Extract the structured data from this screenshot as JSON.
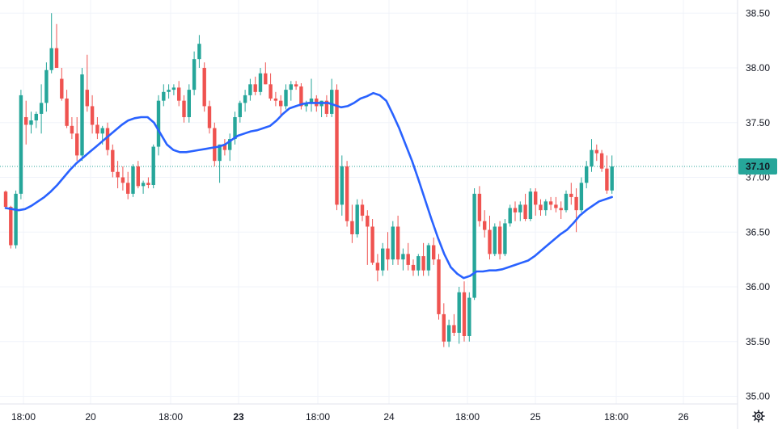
{
  "chart_data": {
    "type": "candlestick",
    "y_axis": {
      "ticks": [
        "38.50",
        "38.00",
        "37.50",
        "37.00",
        "36.50",
        "36.00",
        "35.50",
        "35.00"
      ],
      "range": [
        34.93,
        38.62
      ]
    },
    "x_axis": {
      "labels": [
        {
          "text": "18:00",
          "bold": false
        },
        {
          "text": "20",
          "bold": false
        },
        {
          "text": "18:00",
          "bold": false
        },
        {
          "text": "23",
          "bold": true
        },
        {
          "text": "18:00",
          "bold": false
        },
        {
          "text": "24",
          "bold": false
        },
        {
          "text": "18:00",
          "bold": false
        },
        {
          "text": "25",
          "bold": false
        },
        {
          "text": "18:00",
          "bold": false
        },
        {
          "text": "26",
          "bold": false
        }
      ]
    },
    "last_price": {
      "value": 37.1,
      "label": "37.10"
    },
    "candles": [
      [
        36.87,
        36.88,
        36.71,
        36.73
      ],
      [
        36.73,
        36.74,
        36.35,
        36.38
      ],
      [
        36.38,
        36.88,
        36.35,
        36.85
      ],
      [
        36.85,
        37.8,
        36.8,
        37.75
      ],
      [
        37.55,
        37.7,
        37.3,
        37.48
      ],
      [
        37.48,
        37.6,
        37.4,
        37.52
      ],
      [
        37.52,
        37.6,
        37.45,
        37.58
      ],
      [
        37.58,
        37.85,
        37.4,
        37.68
      ],
      [
        37.68,
        38.05,
        37.6,
        37.98
      ],
      [
        37.98,
        38.5,
        37.95,
        38.18
      ],
      [
        38.18,
        38.4,
        38.0,
        38.0
      ],
      [
        37.9,
        38.0,
        37.7,
        37.72
      ],
      [
        37.72,
        37.8,
        37.45,
        37.47
      ],
      [
        37.47,
        37.55,
        37.35,
        37.4
      ],
      [
        37.4,
        37.55,
        37.15,
        37.2
      ],
      [
        37.2,
        38.0,
        37.15,
        37.94
      ],
      [
        37.8,
        38.12,
        37.6,
        37.65
      ],
      [
        37.65,
        37.75,
        37.4,
        37.48
      ],
      [
        37.48,
        37.55,
        37.35,
        37.4
      ],
      [
        37.4,
        37.47,
        37.3,
        37.45
      ],
      [
        37.45,
        37.5,
        37.2,
        37.25
      ],
      [
        37.25,
        37.3,
        37.0,
        37.05
      ],
      [
        37.05,
        37.15,
        36.9,
        37.0
      ],
      [
        37.0,
        37.1,
        36.88,
        36.95
      ],
      [
        36.95,
        37.05,
        36.8,
        36.85
      ],
      [
        36.85,
        37.12,
        36.82,
        37.1
      ],
      [
        37.1,
        37.15,
        36.9,
        36.92
      ],
      [
        36.92,
        36.97,
        36.85,
        36.95
      ],
      [
        36.95,
        37.0,
        36.9,
        36.93
      ],
      [
        36.93,
        37.3,
        36.9,
        37.28
      ],
      [
        37.28,
        37.75,
        37.2,
        37.7
      ],
      [
        37.7,
        37.85,
        37.65,
        37.78
      ],
      [
        37.78,
        37.85,
        37.72,
        37.8
      ],
      [
        37.8,
        37.85,
        37.75,
        37.82
      ],
      [
        37.82,
        37.88,
        37.65,
        37.7
      ],
      [
        37.7,
        37.75,
        37.5,
        37.55
      ],
      [
        37.55,
        37.85,
        37.5,
        37.8
      ],
      [
        37.8,
        38.15,
        37.75,
        38.08
      ],
      [
        38.08,
        38.3,
        38.0,
        38.22
      ],
      [
        38.0,
        38.05,
        37.6,
        37.65
      ],
      [
        37.65,
        37.7,
        37.4,
        37.45
      ],
      [
        37.45,
        37.5,
        37.1,
        37.15
      ],
      [
        37.15,
        37.3,
        36.95,
        37.3
      ],
      [
        37.3,
        37.35,
        37.2,
        37.25
      ],
      [
        37.25,
        37.4,
        37.15,
        37.35
      ],
      [
        37.35,
        37.6,
        37.3,
        37.55
      ],
      [
        37.55,
        37.7,
        37.5,
        37.68
      ],
      [
        37.68,
        37.8,
        37.6,
        37.75
      ],
      [
        37.75,
        37.9,
        37.7,
        37.85
      ],
      [
        37.85,
        37.92,
        37.75,
        37.78
      ],
      [
        37.78,
        38.0,
        37.75,
        37.95
      ],
      [
        37.95,
        38.05,
        37.85,
        37.85
      ],
      [
        37.85,
        37.95,
        37.7,
        37.72
      ],
      [
        37.72,
        37.78,
        37.65,
        37.7
      ],
      [
        37.7,
        37.75,
        37.55,
        37.65
      ],
      [
        37.65,
        37.85,
        37.62,
        37.8
      ],
      [
        37.8,
        37.88,
        37.7,
        37.85
      ],
      [
        37.85,
        37.88,
        37.8,
        37.83
      ],
      [
        37.83,
        37.86,
        37.62,
        37.65
      ],
      [
        37.65,
        37.7,
        37.6,
        37.68
      ],
      [
        37.68,
        37.9,
        37.6,
        37.72
      ],
      [
        37.72,
        37.75,
        37.6,
        37.65
      ],
      [
        37.65,
        37.7,
        37.55,
        37.7
      ],
      [
        37.7,
        37.75,
        37.55,
        37.58
      ],
      [
        37.58,
        37.9,
        37.55,
        37.8
      ],
      [
        37.8,
        37.85,
        36.7,
        36.75
      ],
      [
        36.75,
        37.2,
        36.65,
        37.1
      ],
      [
        37.1,
        37.15,
        36.55,
        36.6
      ],
      [
        36.6,
        36.75,
        36.4,
        36.48
      ],
      [
        36.48,
        36.8,
        36.45,
        36.75
      ],
      [
        36.75,
        36.8,
        36.6,
        36.65
      ],
      [
        36.65,
        36.7,
        36.2,
        36.55
      ],
      [
        36.55,
        36.62,
        36.2,
        36.22
      ],
      [
        36.22,
        36.3,
        36.05,
        36.15
      ],
      [
        36.15,
        36.4,
        36.1,
        36.35
      ],
      [
        36.35,
        36.5,
        36.15,
        36.25
      ],
      [
        36.25,
        36.6,
        36.2,
        36.55
      ],
      [
        36.55,
        36.65,
        36.2,
        36.25
      ],
      [
        36.25,
        36.35,
        36.15,
        36.3
      ],
      [
        36.3,
        36.4,
        36.15,
        36.2
      ],
      [
        36.2,
        36.25,
        36.1,
        36.15
      ],
      [
        36.15,
        36.3,
        36.1,
        36.28
      ],
      [
        36.28,
        36.4,
        36.1,
        36.15
      ],
      [
        36.15,
        36.4,
        36.1,
        36.38
      ],
      [
        36.38,
        36.45,
        36.2,
        36.25
      ],
      [
        36.25,
        36.3,
        35.7,
        35.75
      ],
      [
        35.75,
        35.85,
        35.45,
        35.5
      ],
      [
        35.5,
        35.7,
        35.45,
        35.65
      ],
      [
        35.65,
        35.75,
        35.55,
        35.58
      ],
      [
        35.58,
        36.0,
        35.48,
        35.95
      ],
      [
        35.95,
        36.05,
        35.5,
        35.55
      ],
      [
        35.55,
        35.95,
        35.5,
        35.9
      ],
      [
        35.9,
        36.9,
        35.88,
        36.85
      ],
      [
        36.85,
        36.92,
        36.55,
        36.6
      ],
      [
        36.6,
        36.7,
        36.45,
        36.52
      ],
      [
        36.52,
        36.65,
        36.25,
        36.3
      ],
      [
        36.3,
        36.58,
        36.28,
        36.55
      ],
      [
        36.55,
        36.6,
        36.25,
        36.3
      ],
      [
        36.3,
        36.62,
        36.28,
        36.58
      ],
      [
        36.58,
        36.75,
        36.55,
        36.72
      ],
      [
        36.72,
        36.78,
        36.6,
        36.68
      ],
      [
        36.68,
        36.78,
        36.6,
        36.75
      ],
      [
        36.75,
        36.85,
        36.6,
        36.62
      ],
      [
        36.62,
        36.9,
        36.6,
        36.87
      ],
      [
        36.87,
        36.9,
        36.65,
        36.75
      ],
      [
        36.75,
        36.8,
        36.65,
        36.7
      ],
      [
        36.7,
        36.8,
        36.65,
        36.78
      ],
      [
        36.78,
        36.82,
        36.7,
        36.75
      ],
      [
        36.75,
        36.82,
        36.68,
        36.72
      ],
      [
        36.72,
        36.78,
        36.62,
        36.7
      ],
      [
        36.7,
        36.88,
        36.68,
        36.85
      ],
      [
        36.85,
        36.95,
        36.75,
        36.82
      ],
      [
        36.82,
        36.9,
        36.5,
        36.7
      ],
      [
        36.7,
        37.0,
        36.68,
        36.95
      ],
      [
        36.95,
        37.15,
        36.9,
        37.1
      ],
      [
        37.1,
        37.35,
        37.05,
        37.25
      ],
      [
        37.25,
        37.3,
        37.15,
        37.22
      ],
      [
        37.22,
        37.25,
        37.05,
        37.08
      ],
      [
        37.08,
        37.2,
        36.85,
        36.88
      ],
      [
        36.88,
        37.2,
        36.85,
        37.1
      ]
    ],
    "moving_average": [
      36.72,
      36.71,
      36.7,
      36.71,
      36.74,
      36.78,
      36.82,
      36.87,
      36.93,
      37.0,
      37.07,
      37.13,
      37.18,
      37.23,
      37.28,
      37.33,
      37.38,
      37.43,
      37.48,
      37.52,
      37.54,
      37.55,
      37.55,
      37.5,
      37.4,
      37.3,
      37.25,
      37.23,
      37.23,
      37.24,
      37.25,
      37.26,
      37.27,
      37.28,
      37.3,
      37.34,
      37.38,
      37.4,
      37.42,
      37.43,
      37.45,
      37.47,
      37.52,
      37.58,
      37.63,
      37.65,
      37.67,
      37.68,
      37.68,
      37.68,
      37.68,
      37.66,
      37.64,
      37.65,
      37.68,
      37.72,
      37.74,
      37.77,
      37.75,
      37.7,
      37.58,
      37.45,
      37.3,
      37.15,
      36.98,
      36.8,
      36.62,
      36.45,
      36.3,
      36.18,
      36.12,
      36.08,
      36.1,
      36.14,
      36.14,
      36.15,
      36.15,
      36.16,
      36.18,
      36.2,
      36.22,
      36.24,
      36.28,
      36.33,
      36.38,
      36.43,
      36.48,
      36.52,
      36.58,
      36.65,
      36.7,
      36.74,
      36.78,
      36.8,
      36.82
    ],
    "ma_start_index": 0,
    "ma_x_step": 1.0
  },
  "colors": {
    "up": "#26a69a",
    "down": "#ef5350",
    "ma_line": "#2962ff",
    "grid": "#f0f3fa",
    "axis_line": "#e0e3eb",
    "price_tag_bg": "#26a69a",
    "price_tag_text": "#ffffff",
    "dotted_price_line": "#26a69a"
  },
  "icons": {
    "settings": "gear-icon"
  }
}
